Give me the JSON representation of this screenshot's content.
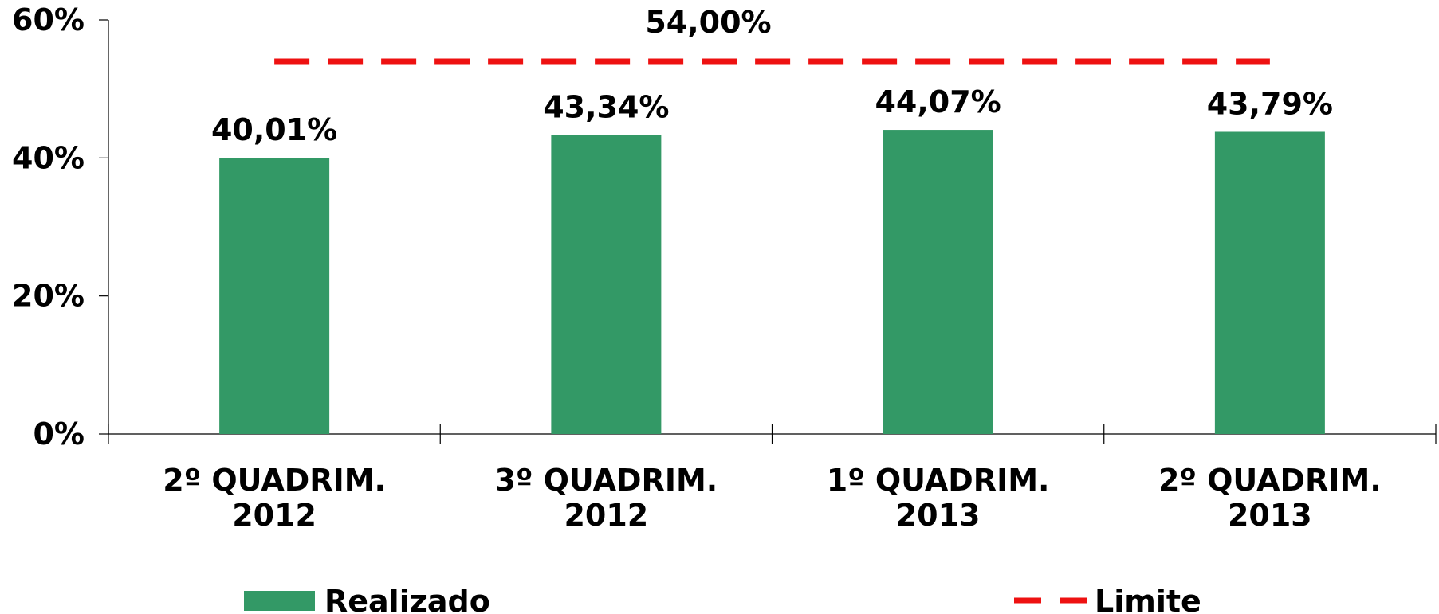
{
  "chart_data": {
    "type": "bar",
    "categories": [
      [
        "2º QUADRIM.",
        "2012"
      ],
      [
        "3º QUADRIM.",
        "2012"
      ],
      [
        "1º QUADRIM.",
        "2013"
      ],
      [
        "2º QUADRIM.",
        "2013"
      ]
    ],
    "series": [
      {
        "name": "Realizado",
        "type": "bar",
        "color": "#339966",
        "values": [
          40.01,
          43.34,
          44.07,
          43.79
        ],
        "value_labels": [
          "40,01%",
          "43,34%",
          "44,07%",
          "43,79%"
        ]
      },
      {
        "name": "Limite",
        "type": "line",
        "dashed": true,
        "color": "#ee1111",
        "values": [
          54,
          54,
          54,
          54
        ]
      }
    ],
    "annotations": [
      {
        "text": "54,00%",
        "series": 1
      }
    ],
    "ylim": [
      0,
      60
    ],
    "yticks": [
      {
        "value": 0,
        "label": "0%"
      },
      {
        "value": 20,
        "label": "20%"
      },
      {
        "value": 40,
        "label": "40%"
      },
      {
        "value": 60,
        "label": "60%"
      }
    ],
    "grid": false,
    "legend": "bottom"
  }
}
